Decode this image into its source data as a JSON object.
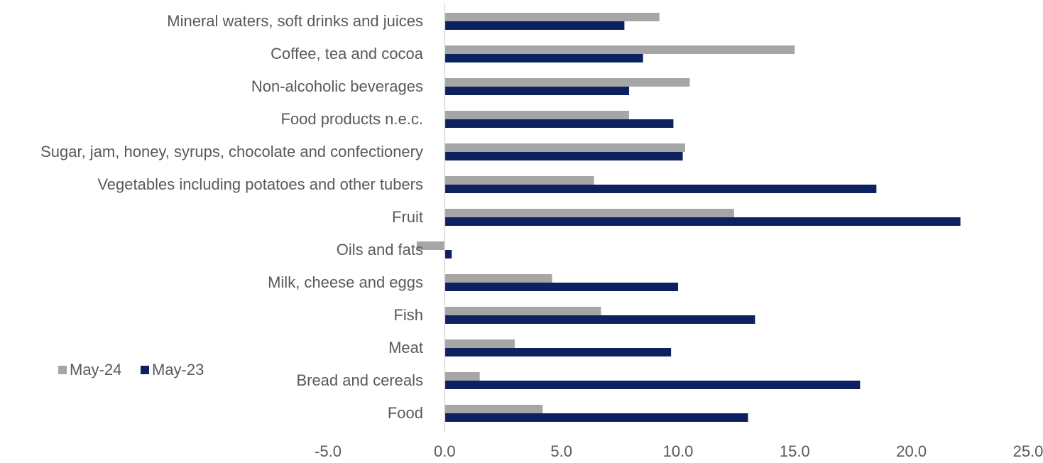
{
  "chart_data": {
    "type": "bar",
    "orientation": "horizontal",
    "categories": [
      "Food",
      "Bread and cereals",
      "Meat",
      "Fish",
      "Milk, cheese and eggs",
      "Oils and fats",
      "Fruit",
      "Vegetables including potatoes and other tubers",
      "Sugar, jam, honey, syrups, chocolate and confectionery",
      "Food products n.e.c.",
      "Non-alcoholic beverages",
      "Coffee, tea and cocoa",
      "Mineral waters, soft drinks and juices"
    ],
    "series": [
      {
        "name": "May-24",
        "color": "#a6a6a6",
        "values": [
          4.2,
          1.5,
          3.0,
          6.7,
          4.6,
          -1.2,
          12.4,
          6.4,
          10.3,
          7.9,
          10.5,
          15.0,
          9.2
        ]
      },
      {
        "name": "May-23",
        "color": "#0c2160",
        "values": [
          13.0,
          17.8,
          9.7,
          13.3,
          10.0,
          0.3,
          22.1,
          18.5,
          10.2,
          9.8,
          7.9,
          8.5,
          7.7
        ]
      }
    ],
    "xlim": [
      -5,
      25
    ],
    "x_ticks": [
      "-5.0",
      "0.0",
      "5.0",
      "10.0",
      "15.0",
      "20.0",
      "25.0"
    ],
    "x_tick_values": [
      -5,
      0,
      5,
      10,
      15,
      20,
      25
    ],
    "grid": false,
    "legend_position": "left"
  }
}
